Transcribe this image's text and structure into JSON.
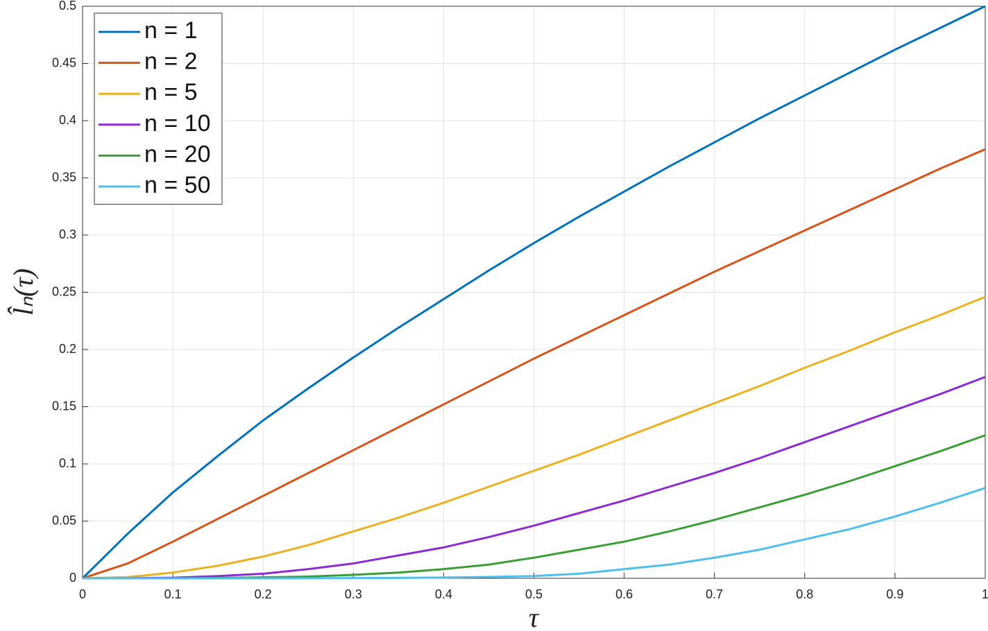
{
  "chart_data": {
    "type": "line",
    "xlabel": "τ",
    "ylabel": "l̂ₙ(τ)",
    "x": [
      0,
      0.05,
      0.1,
      0.15,
      0.2,
      0.25,
      0.3,
      0.35,
      0.4,
      0.45,
      0.5,
      0.55,
      0.6,
      0.65,
      0.7,
      0.75,
      0.8,
      0.85,
      0.9,
      0.95,
      1
    ],
    "series": [
      {
        "name": "n = 1",
        "color": "#0072BD",
        "values": [
          0,
          0.039,
          0.075,
          0.107,
          0.138,
          0.166,
          0.193,
          0.219,
          0.244,
          0.269,
          0.293,
          0.316,
          0.338,
          0.36,
          0.381,
          0.402,
          0.422,
          0.442,
          0.462,
          0.481,
          0.5
        ]
      },
      {
        "name": "n = 2",
        "color": "#D95319",
        "values": [
          0,
          0.013,
          0.032,
          0.052,
          0.072,
          0.092,
          0.112,
          0.132,
          0.152,
          0.172,
          0.192,
          0.211,
          0.23,
          0.249,
          0.268,
          0.286,
          0.304,
          0.322,
          0.34,
          0.358,
          0.375
        ]
      },
      {
        "name": "n = 5",
        "color": "#EDB120",
        "values": [
          0,
          0.001,
          0.005,
          0.011,
          0.019,
          0.029,
          0.041,
          0.053,
          0.066,
          0.08,
          0.094,
          0.108,
          0.123,
          0.138,
          0.153,
          0.168,
          0.184,
          0.199,
          0.215,
          0.23,
          0.246
        ]
      },
      {
        "name": "n = 10",
        "color": "#8B2BD6",
        "values": [
          0,
          0.0001,
          0.0005,
          0.002,
          0.004,
          0.008,
          0.013,
          0.02,
          0.027,
          0.036,
          0.046,
          0.057,
          0.068,
          0.08,
          0.092,
          0.105,
          0.119,
          0.133,
          0.147,
          0.161,
          0.176
        ]
      },
      {
        "name": "n = 20",
        "color": "#3A9E35",
        "values": [
          0,
          0,
          0,
          0.0003,
          0.0008,
          0.0015,
          0.003,
          0.005,
          0.008,
          0.012,
          0.018,
          0.025,
          0.032,
          0.041,
          0.051,
          0.062,
          0.073,
          0.085,
          0.098,
          0.111,
          0.125
        ]
      },
      {
        "name": "n = 50",
        "color": "#4DBEEE",
        "values": [
          0,
          0,
          0,
          0,
          0,
          0.0001,
          0.0002,
          0.0004,
          0.0007,
          0.0012,
          0.002,
          0.004,
          0.008,
          0.012,
          0.018,
          0.025,
          0.034,
          0.043,
          0.054,
          0.066,
          0.079
        ]
      }
    ],
    "xlim": [
      0,
      1
    ],
    "xticks": [
      0,
      0.1,
      0.2,
      0.3,
      0.4,
      0.5,
      0.6,
      0.7,
      0.8,
      0.9,
      1
    ],
    "ylim": [
      0,
      0.5
    ],
    "yticks": [
      0,
      0.05,
      0.1,
      0.15,
      0.2,
      0.25,
      0.3,
      0.35,
      0.4,
      0.45,
      0.5
    ],
    "grid": true,
    "legend": "upper-left"
  }
}
